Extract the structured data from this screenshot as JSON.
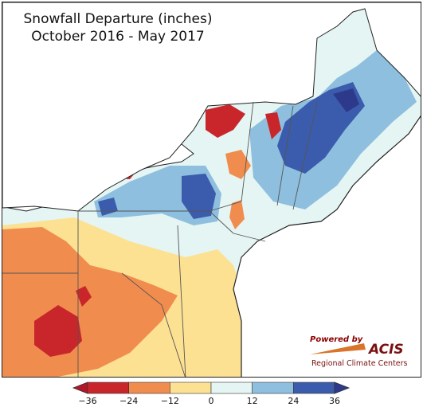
{
  "title": {
    "line1": "Snowfall Departure (inches)",
    "line2": "October 2016 - May 2017"
  },
  "logo": {
    "powered_by": "Powered by",
    "name": "ACIS",
    "subtitle": "Regional Climate Centers"
  },
  "legend": {
    "ticks": [
      "−36",
      "−24",
      "−12",
      "0",
      "12",
      "24",
      "36"
    ],
    "bins": [
      {
        "from": -36,
        "to": -24,
        "color": "#c8262b"
      },
      {
        "from": -24,
        "to": -12,
        "color": "#f08d4e"
      },
      {
        "from": -12,
        "to": 0,
        "color": "#fde193"
      },
      {
        "from": 0,
        "to": 12,
        "color": "#e4f5f3"
      },
      {
        "from": 12,
        "to": 24,
        "color": "#8fbfde"
      },
      {
        "from": 24,
        "to": 36,
        "color": "#3b5cad"
      }
    ],
    "under_color": "#b2182b",
    "over_color": "#2d3a8c"
  },
  "colors": {
    "lake": "#ffffff",
    "ocean": "#ffffff",
    "border": "#555555",
    "coast": "#222222"
  }
}
